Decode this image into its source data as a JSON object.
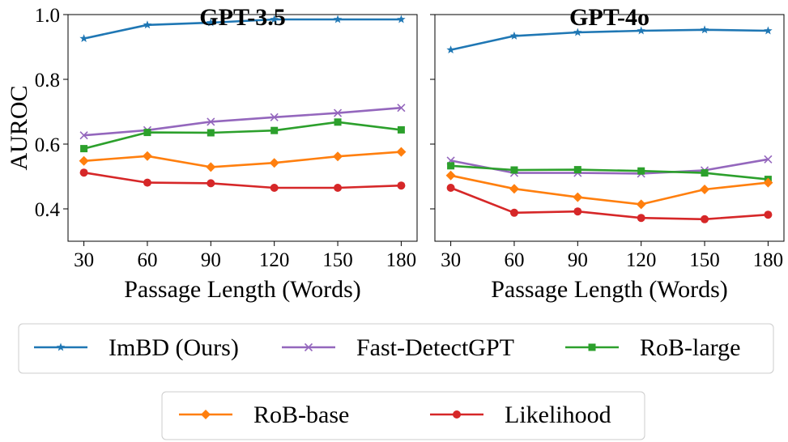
{
  "chart_data": [
    {
      "type": "line",
      "title": "GPT-3.5",
      "xlabel": "Passage Length (Words)",
      "ylabel": "AUROC",
      "x": [
        30,
        60,
        90,
        120,
        150,
        180
      ],
      "ylim": [
        0.3,
        1.0
      ],
      "yticks": [
        0.4,
        0.6,
        0.8,
        1.0
      ],
      "ytick_labels": [
        "0.4",
        "0.6",
        "0.8",
        "1.0"
      ],
      "series": [
        {
          "name": "ImBD (Ours)",
          "color": "#1f77b4",
          "marker": "star",
          "values": [
            0.926,
            0.968,
            0.975,
            0.985,
            0.985,
            0.985
          ]
        },
        {
          "name": "Fast-DetectGPT",
          "color": "#9467bd",
          "marker": "x",
          "values": [
            0.627,
            0.643,
            0.669,
            0.683,
            0.696,
            0.712
          ]
        },
        {
          "name": "RoB-large",
          "color": "#2ca02c",
          "marker": "square",
          "values": [
            0.586,
            0.636,
            0.635,
            0.642,
            0.668,
            0.644
          ]
        },
        {
          "name": "RoB-base",
          "color": "#ff7f0e",
          "marker": "diamond",
          "values": [
            0.548,
            0.563,
            0.529,
            0.542,
            0.562,
            0.576
          ]
        },
        {
          "name": "Likelihood",
          "color": "#d62728",
          "marker": "circle",
          "values": [
            0.512,
            0.481,
            0.479,
            0.465,
            0.465,
            0.472
          ]
        }
      ]
    },
    {
      "type": "line",
      "title": "GPT-4o",
      "xlabel": "Passage Length (Words)",
      "ylabel": "",
      "x": [
        30,
        60,
        90,
        120,
        150,
        180
      ],
      "ylim": [
        0.3,
        1.0
      ],
      "yticks": [
        0.4,
        0.6,
        0.8,
        1.0
      ],
      "ytick_labels": [],
      "series": [
        {
          "name": "ImBD (Ours)",
          "color": "#1f77b4",
          "marker": "star",
          "values": [
            0.891,
            0.934,
            0.945,
            0.95,
            0.953,
            0.95
          ]
        },
        {
          "name": "Fast-DetectGPT",
          "color": "#9467bd",
          "marker": "x",
          "values": [
            0.549,
            0.511,
            0.511,
            0.509,
            0.519,
            0.553
          ]
        },
        {
          "name": "RoB-large",
          "color": "#2ca02c",
          "marker": "square",
          "values": [
            0.533,
            0.52,
            0.521,
            0.517,
            0.511,
            0.491
          ]
        },
        {
          "name": "RoB-base",
          "color": "#ff7f0e",
          "marker": "diamond",
          "values": [
            0.503,
            0.462,
            0.436,
            0.414,
            0.46,
            0.481
          ]
        },
        {
          "name": "Likelihood",
          "color": "#d62728",
          "marker": "circle",
          "values": [
            0.465,
            0.388,
            0.392,
            0.372,
            0.368,
            0.382
          ]
        }
      ]
    }
  ],
  "legend": {
    "row1": [
      "ImBD (Ours)",
      "Fast-DetectGPT",
      "RoB-large"
    ],
    "row2": [
      "RoB-base",
      "Likelihood"
    ]
  }
}
